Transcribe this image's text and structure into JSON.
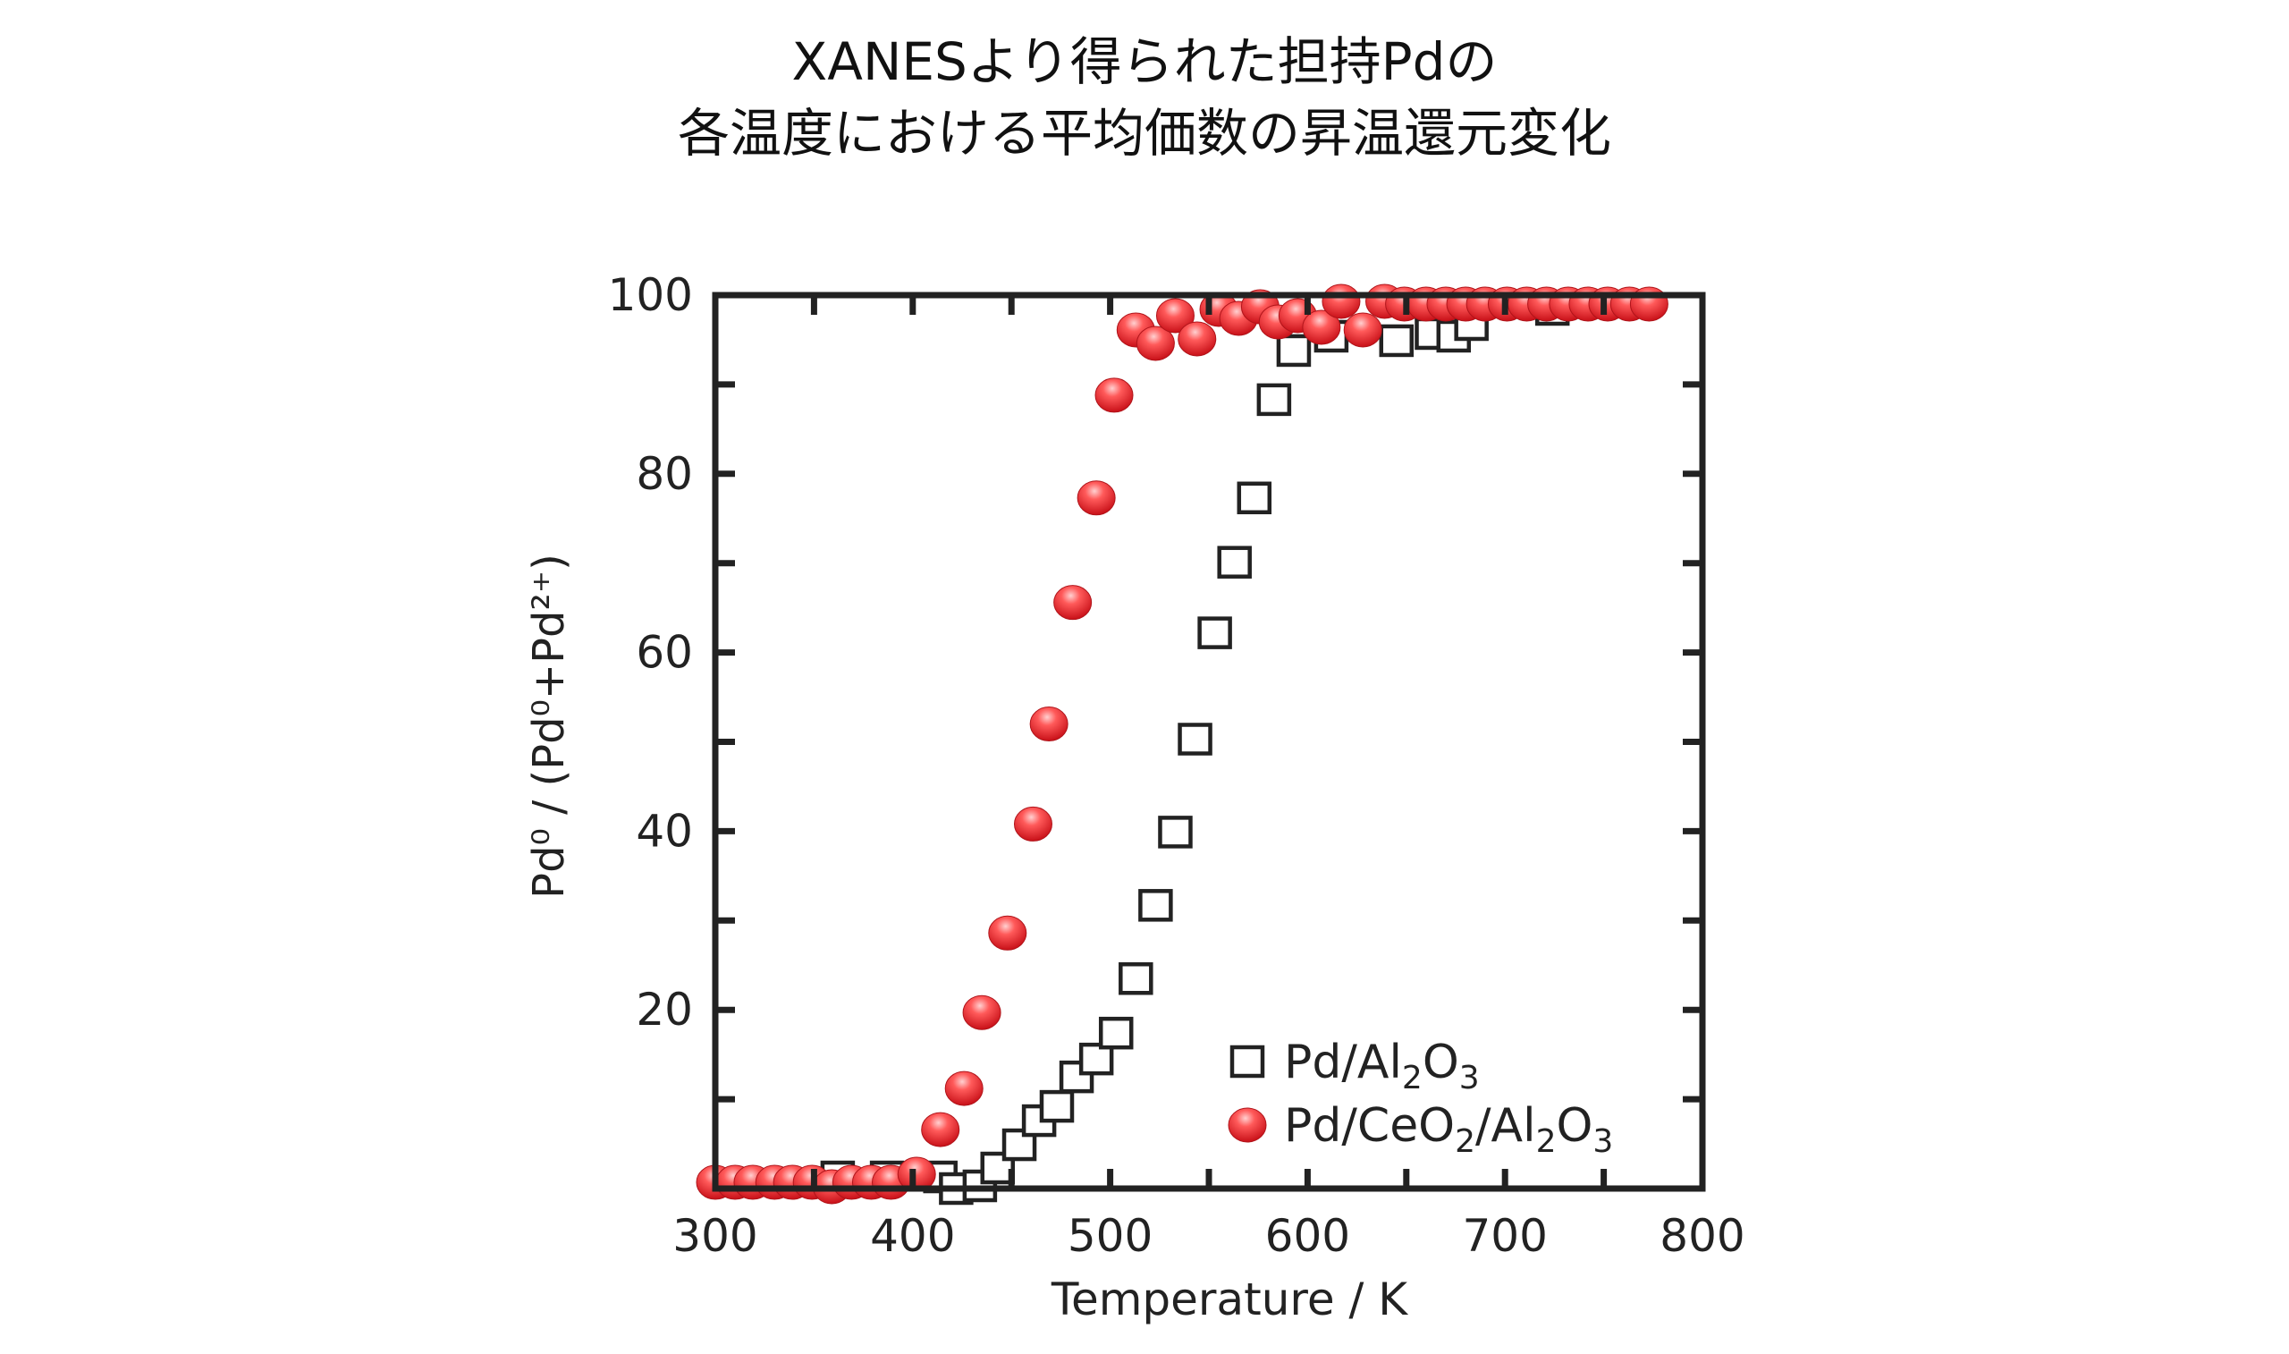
{
  "chart_data": {
    "type": "scatter",
    "title": [
      "XANESより得られた担持Pdの",
      "各温度における平均価数の昇温還元変化"
    ],
    "xlabel": "Temperature / K",
    "ylabel": "Pd⁰ / (Pd⁰+Pd²⁺)",
    "xlim": [
      300,
      800
    ],
    "ylim": [
      0,
      100
    ],
    "xticks": [
      300,
      400,
      500,
      600,
      700,
      800
    ],
    "yticks": [
      20,
      40,
      60,
      80,
      100
    ],
    "grid": false,
    "legend_position": "bottom-right",
    "series": [
      {
        "name": "Pd/Al2O3",
        "legend_html": [
          "Pd/Al",
          "2",
          "O",
          "3"
        ],
        "marker": "open-square",
        "color": "#222222",
        "points": [
          [
            362,
            1.3
          ],
          [
            387,
            1.3
          ],
          [
            414,
            1.3
          ],
          [
            422,
            0
          ],
          [
            434,
            0.3
          ],
          [
            443,
            2.3
          ],
          [
            454,
            4.9
          ],
          [
            464,
            7.6
          ],
          [
            473,
            9.2
          ],
          [
            483,
            12.5
          ],
          [
            493,
            14.5
          ],
          [
            503,
            17.4
          ],
          [
            513,
            23.5
          ],
          [
            523,
            31.7
          ],
          [
            533,
            39.9
          ],
          [
            543,
            50.3
          ],
          [
            553,
            62.2
          ],
          [
            563,
            70.1
          ],
          [
            573,
            77.3
          ],
          [
            583,
            88.3
          ],
          [
            593,
            93.8
          ],
          [
            612,
            95.4
          ],
          [
            645,
            94.9
          ],
          [
            663,
            95.7
          ],
          [
            674,
            95.4
          ],
          [
            683,
            96.7
          ],
          [
            724,
            98.4
          ]
        ]
      },
      {
        "name": "Pd/CeO2/Al2O3",
        "legend_html": [
          "Pd/CeO",
          "2",
          "/Al",
          "2",
          "O",
          "3"
        ],
        "marker": "filled-circle",
        "color": "#e8262b",
        "points": [
          [
            300,
            0.7
          ],
          [
            310,
            0.7
          ],
          [
            319,
            0.7
          ],
          [
            330,
            0.7
          ],
          [
            339,
            0.7
          ],
          [
            349,
            0.7
          ],
          [
            359,
            0.2
          ],
          [
            369,
            0.7
          ],
          [
            379,
            0.7
          ],
          [
            389,
            0.7
          ],
          [
            402,
            1.6
          ],
          [
            414,
            6.6
          ],
          [
            426,
            11.2
          ],
          [
            435,
            19.7
          ],
          [
            448,
            28.6
          ],
          [
            461,
            40.8
          ],
          [
            469,
            52.0
          ],
          [
            481,
            65.6
          ],
          [
            493,
            77.3
          ],
          [
            502,
            88.8
          ],
          [
            513,
            96.1
          ],
          [
            523,
            94.6
          ],
          [
            533,
            97.7
          ],
          [
            544,
            95.1
          ],
          [
            555,
            98.4
          ],
          [
            565,
            97.4
          ],
          [
            576,
            98.7
          ],
          [
            585,
            97.0
          ],
          [
            595,
            97.7
          ],
          [
            607,
            96.4
          ],
          [
            617,
            99.3
          ],
          [
            628,
            96.1
          ],
          [
            639,
            99.3
          ],
          [
            649,
            99.0
          ],
          [
            660,
            99.0
          ],
          [
            670,
            99.0
          ],
          [
            680,
            99.0
          ],
          [
            690,
            99.0
          ],
          [
            701,
            99.0
          ],
          [
            711,
            99.0
          ],
          [
            721,
            99.0
          ],
          [
            732,
            99.0
          ],
          [
            742,
            99.0
          ],
          [
            752,
            99.0
          ],
          [
            763,
            99.0
          ],
          [
            773,
            99.0
          ]
        ]
      }
    ]
  }
}
